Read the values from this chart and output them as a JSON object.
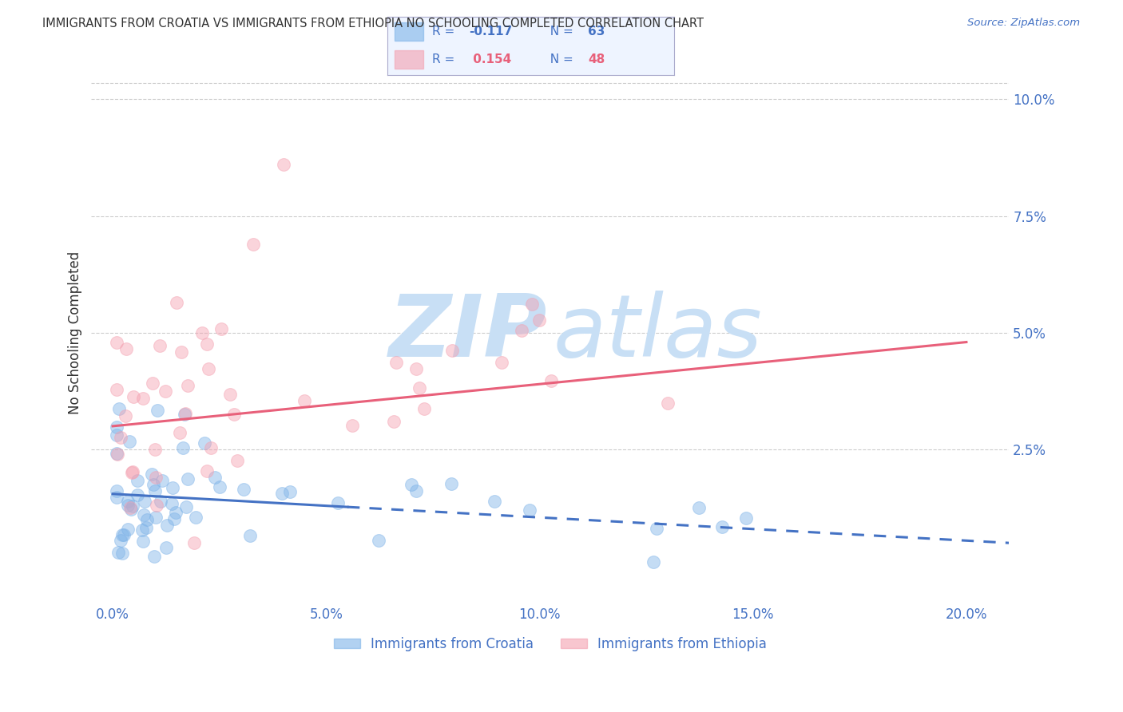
{
  "title": "IMMIGRANTS FROM CROATIA VS IMMIGRANTS FROM ETHIOPIA NO SCHOOLING COMPLETED CORRELATION CHART",
  "source": "Source: ZipAtlas.com",
  "ylabel": "No Schooling Completed",
  "croatia_R": -0.117,
  "croatia_N": 63,
  "ethiopia_R": 0.154,
  "ethiopia_N": 48,
  "croatia_color": "#7EB3E8",
  "ethiopia_color": "#F4A0B0",
  "croatia_line_color": "#4472C4",
  "ethiopia_line_color": "#E8607A",
  "legend_bg_color": "#EEF4FF",
  "legend_border_color": "#AAAACC",
  "watermark_zip_color": "#C8DFF5",
  "watermark_atlas_color": "#C8DFF5",
  "background_color": "#FFFFFF",
  "grid_color": "#CCCCCC",
  "title_color": "#333333",
  "axis_color": "#4472C4",
  "xlim": [
    -0.005,
    0.21
  ],
  "ylim": [
    -0.008,
    0.108
  ],
  "xtick_vals": [
    0.0,
    0.05,
    0.1,
    0.15,
    0.2
  ],
  "xtick_labels": [
    "0.0%",
    "5.0%",
    "10.0%",
    "15.0%",
    "20.0%"
  ],
  "ytick_vals": [
    0.0,
    0.025,
    0.05,
    0.075,
    0.1
  ],
  "ytick_labels": [
    "",
    "2.5%",
    "5.0%",
    "7.5%",
    "10.0%"
  ],
  "croatia_line_x": [
    0.0,
    0.055,
    0.21
  ],
  "croatia_line_y": [
    0.0155,
    0.0127,
    0.005
  ],
  "croatia_line_solid_end": 0.055,
  "ethiopia_line_x": [
    0.0,
    0.2
  ],
  "ethiopia_line_y": [
    0.03,
    0.048
  ]
}
